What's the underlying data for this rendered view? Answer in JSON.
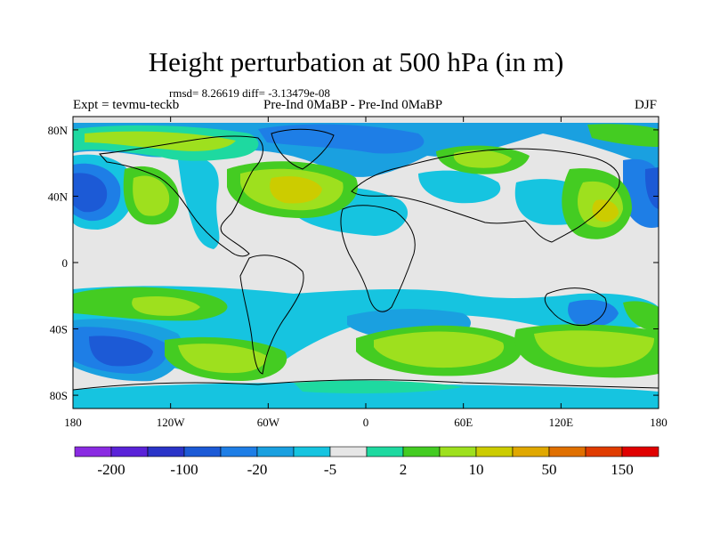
{
  "title": "Height perturbation at 500 hPa (in m)",
  "stats": "rmsd= 8.26619 diff= -3.13479e-08",
  "left_label": "Expt = tevmu-teckb",
  "center_label": "Pre-Ind 0MaBP - Pre-Ind 0MaBP",
  "right_label": "DJF",
  "map": {
    "projection": "cylindrical equidistant",
    "background_color": "#e6e6e6",
    "x_ticks": [
      "180",
      "120W",
      "60W",
      "0",
      "60E",
      "120E",
      "180"
    ],
    "y_ticks": [
      "80N",
      "40N",
      "0",
      "40S",
      "80S"
    ]
  },
  "colorbar": {
    "colors": [
      "#8a2be2",
      "#5a22d8",
      "#2a34c8",
      "#1c5ad6",
      "#1e7ee6",
      "#1aa0e0",
      "#16c4e0",
      "#e6e6e6",
      "#1ed9a0",
      "#44cc22",
      "#9ee01e",
      "#cccc00",
      "#e0a800",
      "#e07000",
      "#e03c00",
      "#e00000"
    ],
    "labels": [
      "-200",
      "-100",
      "-20",
      "-5",
      "2",
      "10",
      "50",
      "150"
    ]
  }
}
